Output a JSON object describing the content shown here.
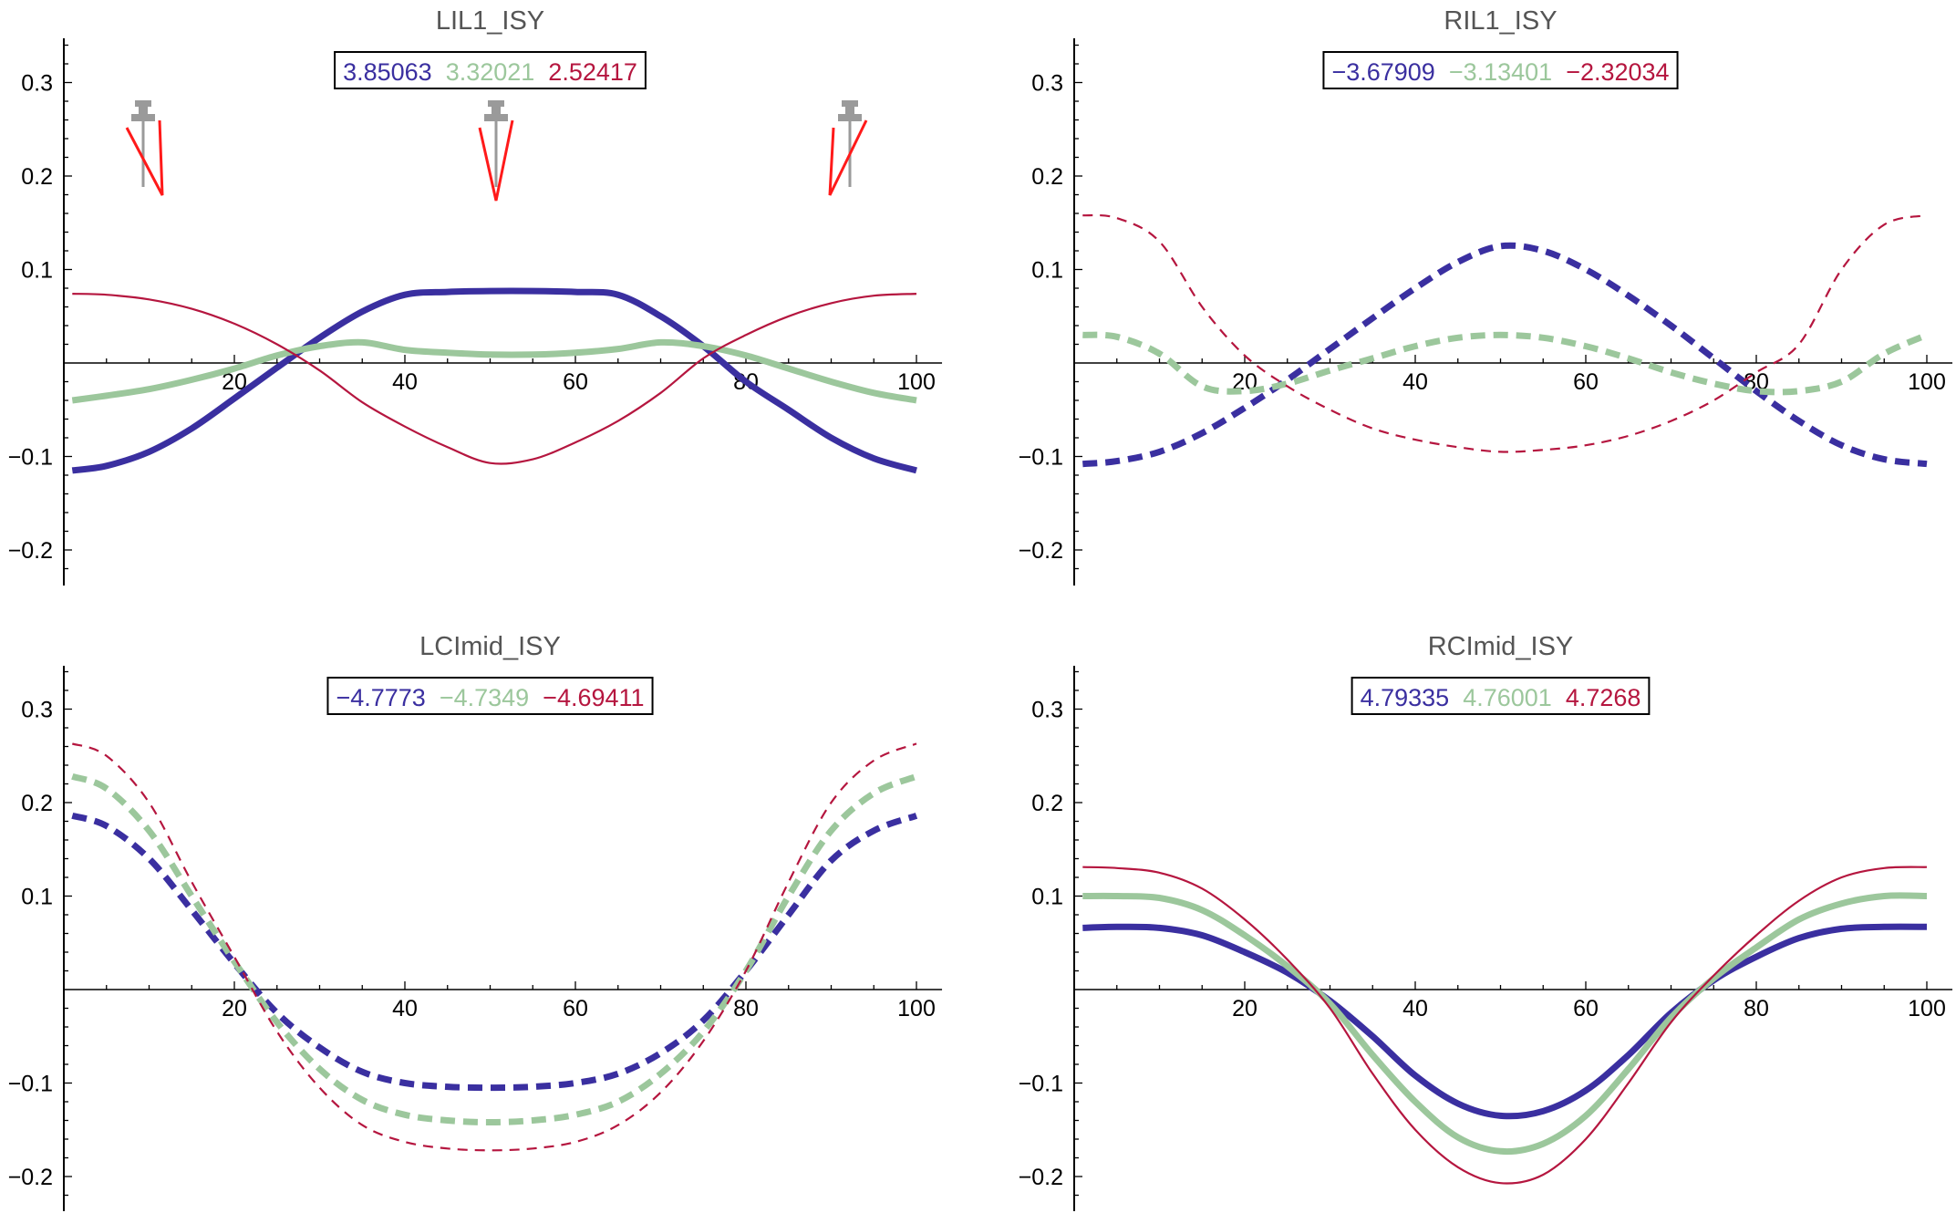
{
  "colors": {
    "blue": "#3a2fa0",
    "green": "#9cc79c",
    "red": "#b5163f",
    "axis": "#000000",
    "title": "#555555",
    "icon_gray": "#9a9a9a",
    "icon_red": "#ff1a1a"
  },
  "chart_data": [
    {
      "type": "line",
      "title": "LIL1_ISY",
      "legend_values": [
        "3.85063",
        "3.32021",
        "2.52417"
      ],
      "legend_placement": "top-center",
      "xlim": [
        0,
        100
      ],
      "ylim": [
        -0.23,
        0.345
      ],
      "x_ticks": [
        20,
        40,
        60,
        80,
        100
      ],
      "x_tick_labels": [
        "20",
        "40",
        "60",
        "80",
        "100"
      ],
      "y_ticks": [
        -0.2,
        -0.1,
        0.1,
        0.2,
        0.3
      ],
      "y_tick_labels": [
        "−0.2",
        "−0.1",
        "0.1",
        "0.2",
        "0.3"
      ],
      "icons": [
        "probe-icon-left",
        "probe-icon-center",
        "probe-icon-right"
      ],
      "series": [
        {
          "color": "blue",
          "style": "solid",
          "weight": "thick",
          "x": [
            1,
            5,
            10,
            15,
            20,
            25,
            30,
            35,
            40,
            45,
            50,
            55,
            60,
            65,
            70,
            75,
            80,
            85,
            90,
            95,
            100
          ],
          "y": [
            -0.115,
            -0.11,
            -0.095,
            -0.07,
            -0.038,
            -0.005,
            0.027,
            0.055,
            0.073,
            0.076,
            0.077,
            0.077,
            0.076,
            0.073,
            0.05,
            0.018,
            -0.02,
            -0.05,
            -0.08,
            -0.102,
            -0.115
          ]
        },
        {
          "color": "green",
          "style": "solid",
          "weight": "thick",
          "x": [
            1,
            5,
            10,
            15,
            20,
            25,
            30,
            35,
            40,
            45,
            50,
            55,
            60,
            65,
            70,
            75,
            80,
            85,
            90,
            95,
            100
          ],
          "y": [
            -0.04,
            -0.035,
            -0.028,
            -0.018,
            -0.006,
            0.008,
            0.018,
            0.022,
            0.014,
            0.011,
            0.009,
            0.009,
            0.011,
            0.015,
            0.022,
            0.018,
            0.008,
            -0.006,
            -0.02,
            -0.032,
            -0.04
          ]
        },
        {
          "color": "red",
          "style": "solid",
          "weight": "thin",
          "x": [
            1,
            5,
            10,
            15,
            20,
            25,
            30,
            35,
            40,
            45,
            50,
            55,
            60,
            65,
            70,
            75,
            80,
            85,
            90,
            95,
            100
          ],
          "y": [
            0.074,
            0.073,
            0.068,
            0.058,
            0.042,
            0.02,
            -0.008,
            -0.042,
            -0.068,
            -0.09,
            -0.107,
            -0.103,
            -0.085,
            -0.062,
            -0.032,
            0.005,
            0.03,
            0.05,
            0.064,
            0.072,
            0.074
          ]
        }
      ]
    },
    {
      "type": "line",
      "title": "RIL1_ISY",
      "legend_values": [
        "−3.67909",
        "−3.13401",
        "−2.32034"
      ],
      "legend_placement": "top-center",
      "xlim": [
        0,
        100
      ],
      "ylim": [
        -0.23,
        0.345
      ],
      "x_ticks": [
        20,
        40,
        60,
        80,
        100
      ],
      "x_tick_labels": [
        "20",
        "40",
        "60",
        "80",
        "100"
      ],
      "y_ticks": [
        -0.2,
        -0.1,
        0.1,
        0.2,
        0.3
      ],
      "y_tick_labels": [
        "−0.2",
        "−0.1",
        "0.1",
        "0.2",
        "0.3"
      ],
      "series": [
        {
          "color": "blue",
          "style": "dashed",
          "weight": "thick",
          "x": [
            1,
            5,
            10,
            15,
            20,
            25,
            30,
            35,
            40,
            45,
            50,
            55,
            60,
            65,
            70,
            75,
            80,
            85,
            90,
            95,
            100
          ],
          "y": [
            -0.108,
            -0.105,
            -0.095,
            -0.075,
            -0.048,
            -0.018,
            0.015,
            0.048,
            0.08,
            0.108,
            0.125,
            0.12,
            0.1,
            0.072,
            0.04,
            0.005,
            -0.03,
            -0.062,
            -0.088,
            -0.103,
            -0.108
          ]
        },
        {
          "color": "green",
          "style": "dashed",
          "weight": "thick",
          "x": [
            1,
            5,
            10,
            15,
            20,
            25,
            30,
            35,
            40,
            45,
            50,
            55,
            60,
            65,
            70,
            75,
            80,
            85,
            90,
            95,
            100
          ],
          "y": [
            0.03,
            0.028,
            0.01,
            -0.025,
            -0.03,
            -0.022,
            -0.008,
            0.005,
            0.018,
            0.027,
            0.03,
            0.027,
            0.018,
            0.005,
            -0.01,
            -0.022,
            -0.03,
            -0.03,
            -0.02,
            0.01,
            0.03
          ]
        },
        {
          "color": "red",
          "style": "dashed",
          "weight": "thin",
          "x": [
            1,
            5,
            10,
            15,
            20,
            25,
            30,
            35,
            40,
            45,
            50,
            55,
            60,
            65,
            70,
            75,
            80,
            85,
            90,
            95,
            100
          ],
          "y": [
            0.158,
            0.155,
            0.13,
            0.06,
            0.008,
            -0.025,
            -0.05,
            -0.07,
            -0.082,
            -0.09,
            -0.095,
            -0.093,
            -0.088,
            -0.078,
            -0.062,
            -0.04,
            -0.01,
            0.02,
            0.1,
            0.148,
            0.158
          ]
        }
      ]
    },
    {
      "type": "line",
      "title": "LCImid_ISY",
      "legend_values": [
        "−4.7773",
        "−4.7349",
        "−4.69411"
      ],
      "legend_placement": "top-center",
      "xlim": [
        0,
        100
      ],
      "ylim": [
        -0.23,
        0.345
      ],
      "x_ticks": [
        20,
        40,
        60,
        80,
        100
      ],
      "x_tick_labels": [
        "20",
        "40",
        "60",
        "80",
        "100"
      ],
      "y_ticks": [
        -0.2,
        -0.1,
        0.1,
        0.2,
        0.3
      ],
      "y_tick_labels": [
        "−0.2",
        "−0.1",
        "0.1",
        "0.2",
        "0.3"
      ],
      "series": [
        {
          "color": "blue",
          "style": "dashed",
          "weight": "thick",
          "x": [
            1,
            5,
            10,
            15,
            20,
            25,
            30,
            35,
            40,
            45,
            50,
            55,
            60,
            65,
            70,
            75,
            80,
            85,
            90,
            95,
            100
          ],
          "y": [
            0.186,
            0.175,
            0.14,
            0.085,
            0.028,
            -0.025,
            -0.062,
            -0.088,
            -0.1,
            -0.104,
            -0.105,
            -0.104,
            -0.1,
            -0.09,
            -0.068,
            -0.033,
            0.02,
            0.08,
            0.138,
            0.17,
            0.186
          ]
        },
        {
          "color": "green",
          "style": "dashed",
          "weight": "thick",
          "x": [
            1,
            5,
            10,
            15,
            20,
            25,
            30,
            35,
            40,
            45,
            50,
            55,
            60,
            65,
            70,
            75,
            80,
            85,
            90,
            95,
            100
          ],
          "y": [
            0.228,
            0.215,
            0.17,
            0.1,
            0.03,
            -0.035,
            -0.085,
            -0.118,
            -0.134,
            -0.14,
            -0.142,
            -0.14,
            -0.134,
            -0.12,
            -0.09,
            -0.045,
            0.02,
            0.1,
            0.17,
            0.21,
            0.228
          ]
        },
        {
          "color": "red",
          "style": "dashed",
          "weight": "thin",
          "x": [
            1,
            5,
            10,
            15,
            20,
            25,
            30,
            35,
            40,
            45,
            50,
            55,
            60,
            65,
            70,
            75,
            80,
            85,
            90,
            95,
            100
          ],
          "y": [
            0.263,
            0.25,
            0.2,
            0.115,
            0.035,
            -0.045,
            -0.105,
            -0.145,
            -0.163,
            -0.17,
            -0.172,
            -0.17,
            -0.163,
            -0.145,
            -0.11,
            -0.055,
            0.02,
            0.115,
            0.2,
            0.245,
            0.263
          ]
        }
      ]
    },
    {
      "type": "line",
      "title": "RCImid_ISY",
      "legend_values": [
        "4.79335",
        "4.76001",
        "4.7268"
      ],
      "legend_placement": "top-center",
      "xlim": [
        0,
        100
      ],
      "ylim": [
        -0.23,
        0.345
      ],
      "x_ticks": [
        20,
        40,
        60,
        80,
        100
      ],
      "x_tick_labels": [
        "20",
        "40",
        "60",
        "80",
        "100"
      ],
      "y_ticks": [
        -0.2,
        -0.1,
        0.1,
        0.2,
        0.3
      ],
      "y_tick_labels": [
        "−0.2",
        "−0.1",
        "0.1",
        "0.2",
        "0.3"
      ],
      "series": [
        {
          "color": "blue",
          "style": "solid",
          "weight": "thick",
          "x": [
            1,
            5,
            10,
            15,
            20,
            25,
            30,
            35,
            40,
            45,
            50,
            55,
            60,
            65,
            70,
            75,
            80,
            85,
            90,
            95,
            100
          ],
          "y": [
            0.066,
            0.067,
            0.066,
            0.058,
            0.04,
            0.018,
            -0.012,
            -0.05,
            -0.092,
            -0.122,
            -0.135,
            -0.13,
            -0.108,
            -0.07,
            -0.025,
            0.01,
            0.035,
            0.055,
            0.065,
            0.067,
            0.067
          ]
        },
        {
          "color": "green",
          "style": "solid",
          "weight": "thick",
          "x": [
            1,
            5,
            10,
            15,
            20,
            25,
            30,
            35,
            40,
            45,
            50,
            55,
            60,
            65,
            70,
            75,
            80,
            85,
            90,
            95,
            100
          ],
          "y": [
            0.1,
            0.1,
            0.098,
            0.085,
            0.058,
            0.025,
            -0.015,
            -0.07,
            -0.12,
            -0.158,
            -0.173,
            -0.165,
            -0.135,
            -0.085,
            -0.03,
            0.012,
            0.045,
            0.075,
            0.092,
            0.1,
            0.1
          ]
        },
        {
          "color": "red",
          "style": "solid",
          "weight": "thin",
          "x": [
            1,
            5,
            10,
            15,
            20,
            25,
            30,
            35,
            40,
            45,
            50,
            55,
            60,
            65,
            70,
            75,
            80,
            85,
            90,
            95,
            100
          ],
          "y": [
            0.131,
            0.13,
            0.125,
            0.108,
            0.075,
            0.032,
            -0.02,
            -0.09,
            -0.15,
            -0.19,
            -0.207,
            -0.198,
            -0.16,
            -0.1,
            -0.035,
            0.015,
            0.058,
            0.095,
            0.12,
            0.13,
            0.131
          ]
        }
      ]
    }
  ]
}
